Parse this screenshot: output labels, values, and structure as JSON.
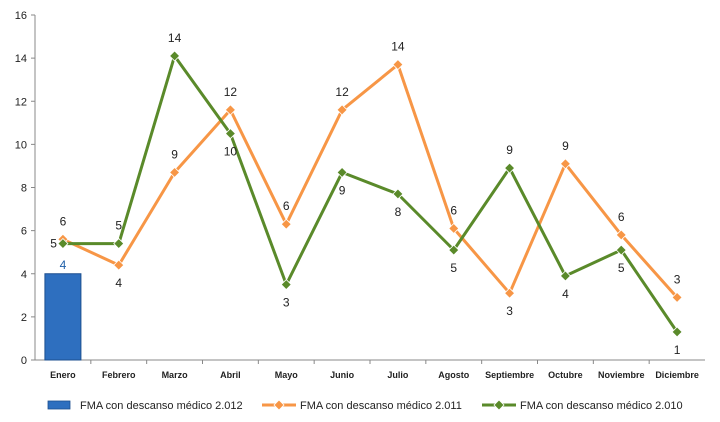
{
  "chart_data": {
    "type": "bar+line",
    "categories": [
      "Enero",
      "Febrero",
      "Marzo",
      "Abril",
      "Mayo",
      "Junio",
      "Julio",
      "Agosto",
      "Septiembre",
      "Octubre",
      "Noviembre",
      "Diciembre"
    ],
    "ylim": [
      0,
      16
    ],
    "yticks": [
      0,
      2,
      4,
      6,
      8,
      10,
      12,
      14,
      16
    ],
    "grid": false,
    "legend_position": "bottom",
    "series": [
      {
        "name": "FMA con descanso médico 2.012",
        "kind": "bar",
        "color": "#2e6fbf",
        "values": [
          4,
          null,
          null,
          null,
          null,
          null,
          null,
          null,
          null,
          null,
          null,
          null
        ],
        "labels": [
          "4",
          "",
          "",
          "",
          "",
          "",
          "",
          "",
          "",
          "",
          "",
          ""
        ]
      },
      {
        "name": "FMA con descanso médico 2.011",
        "kind": "line",
        "color": "#f79646",
        "values": [
          5.6,
          4.4,
          8.7,
          11.6,
          6.3,
          11.6,
          13.7,
          6.1,
          3.1,
          9.1,
          5.8,
          2.9
        ],
        "labels": [
          "6",
          "4",
          "9",
          "12",
          "6",
          "12",
          "14",
          "6",
          "3",
          "9",
          "6",
          "3"
        ]
      },
      {
        "name": "FMA con descanso médico 2.010",
        "kind": "line",
        "color": "#5a8a2a",
        "values": [
          5.4,
          5.4,
          14.1,
          10.5,
          3.5,
          8.7,
          7.7,
          5.1,
          8.9,
          3.9,
          5.1,
          1.3
        ],
        "labels": [
          "5",
          "5",
          "14",
          "10",
          "3",
          "9",
          "8",
          "5",
          "9",
          "4",
          "5",
          "1"
        ]
      }
    ]
  }
}
